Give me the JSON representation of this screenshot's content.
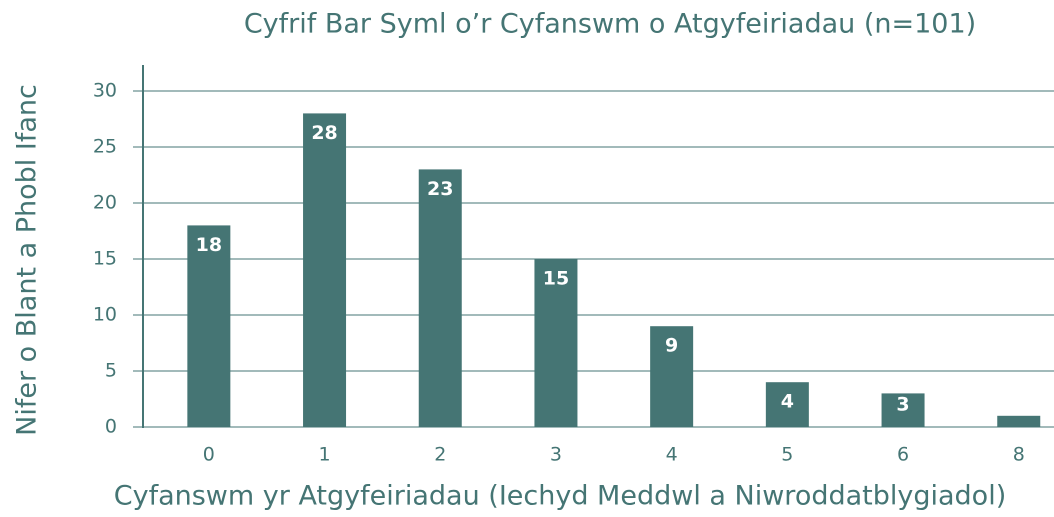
{
  "chart_data": {
    "type": "bar",
    "title": "Cyfrif Bar Syml o’r Cyfanswm o Atgyfeiriadau (n=101)",
    "x_label": "Cyfanswm yr Atgyfeiriadau (Iechyd Meddwl a Niwroddatblygiadol)",
    "y_label": "Nifer o Blant a Phobl Ifanc",
    "categories": [
      "0",
      "1",
      "2",
      "3",
      "4",
      "5",
      "6",
      "8"
    ],
    "values": [
      18,
      28,
      23,
      15,
      9,
      4,
      3,
      1
    ],
    "color": "#457574",
    "ylim": [
      0,
      30
    ],
    "yticks": [
      0,
      5,
      10,
      15,
      20,
      25,
      30
    ],
    "grid": true
  }
}
